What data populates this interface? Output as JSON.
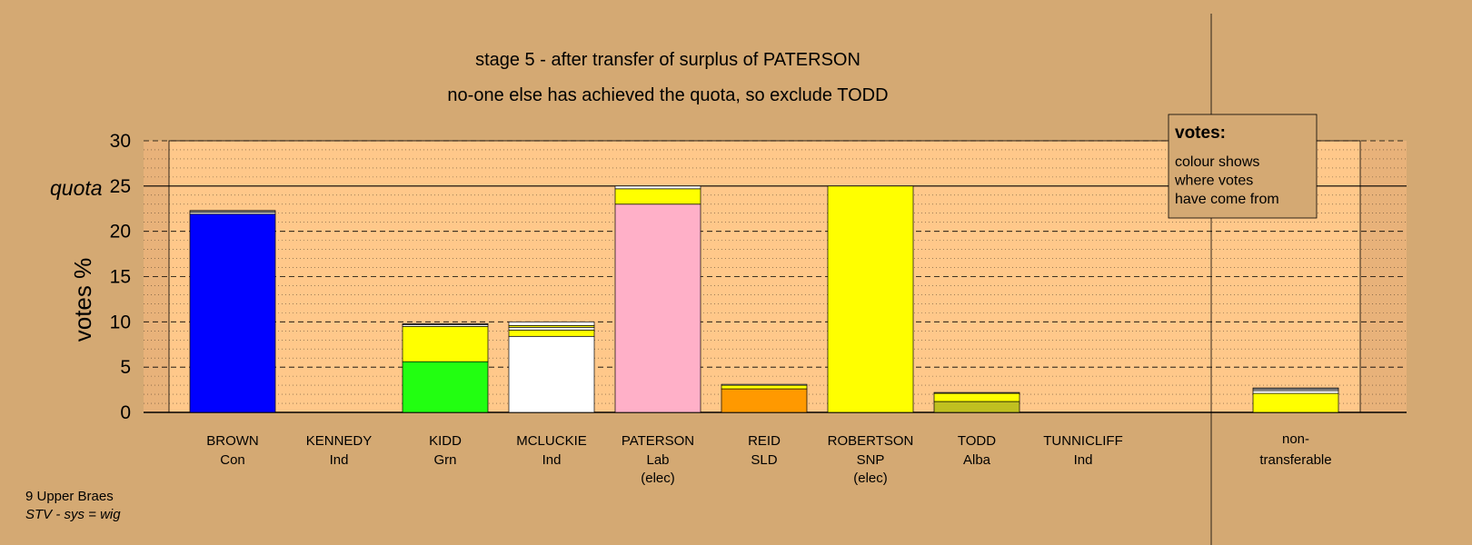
{
  "chart_data": {
    "type": "bar",
    "stacked": true,
    "title": "stage 5 - after transfer of surplus of PATERSON",
    "subtitle": "no-one else has achieved the quota, so exclude TODD",
    "ylabel": "votes %",
    "ylim": [
      0,
      30
    ],
    "yticks": [
      "0",
      "5",
      "10",
      "15",
      "20",
      "25",
      "30"
    ],
    "quota": 25,
    "quota_label": "quota",
    "grid": true,
    "legend_box": {
      "title": "votes:",
      "lines": [
        "colour shows",
        "where votes",
        "have come from"
      ],
      "placement": "top-right"
    },
    "candidates": [
      {
        "name": "BROWN",
        "party": "Con",
        "note": "",
        "segments": [
          {
            "color": "#0000ff",
            "value": 21.9
          },
          {
            "color": "#ffffff",
            "value": 0.2
          },
          {
            "color": "#808080",
            "value": 0.2
          }
        ]
      },
      {
        "name": "KENNEDY",
        "party": "Ind",
        "note": "",
        "segments": []
      },
      {
        "name": "KIDD",
        "party": "Grn",
        "note": "",
        "segments": [
          {
            "color": "#22ff11",
            "value": 5.6
          },
          {
            "color": "#ffff00",
            "value": 3.9
          },
          {
            "color": "#ffffff",
            "value": 0.2
          },
          {
            "color": "#808080",
            "value": 0.1
          }
        ]
      },
      {
        "name": "MCLUCKIE",
        "party": "Ind",
        "note": "",
        "segments": [
          {
            "color": "#ffffff",
            "value": 8.4
          },
          {
            "color": "#ffff00",
            "value": 0.7
          },
          {
            "color": "#ffffff",
            "value": 0.3
          },
          {
            "color": "#ffff00",
            "value": 0.2
          },
          {
            "color": "#ffffff",
            "value": 0.4
          }
        ]
      },
      {
        "name": "PATERSON",
        "party": "Lab",
        "note": "(elec)",
        "segments": [
          {
            "color": "#ffb0c8",
            "value": 23.0
          },
          {
            "color": "#ffff00",
            "value": 1.7
          },
          {
            "color": "#ffffff",
            "value": 0.3
          }
        ]
      },
      {
        "name": "REID",
        "party": "SLD",
        "note": "",
        "segments": [
          {
            "color": "#ff9900",
            "value": 2.6
          },
          {
            "color": "#ffff00",
            "value": 0.4
          },
          {
            "color": "#ffffff",
            "value": 0.1
          }
        ]
      },
      {
        "name": "ROBERTSON",
        "party": "SNP",
        "note": "(elec)",
        "segments": [
          {
            "color": "#ffff00",
            "value": 25.0
          }
        ]
      },
      {
        "name": "TODD",
        "party": "Alba",
        "note": "",
        "segments": [
          {
            "color": "#c0c020",
            "value": 1.2
          },
          {
            "color": "#ffff00",
            "value": 0.9
          },
          {
            "color": "#808080",
            "value": 0.1
          }
        ]
      },
      {
        "name": "TUNNICLIFF",
        "party": "Ind",
        "note": "",
        "segments": []
      }
    ],
    "non_transferable": {
      "label_line1": "non-",
      "label_line2": "transferable",
      "segments": [
        {
          "color": "#ffff00",
          "value": 2.1
        },
        {
          "color": "#ffffff",
          "value": 0.3
        },
        {
          "color": "#c0c0c0",
          "value": 0.2
        },
        {
          "color": "#ffffff",
          "value": 0.1
        }
      ]
    }
  },
  "footer": {
    "line1": "9 Upper Braes",
    "line2": "STV - sys = wig"
  },
  "colors": {
    "background": "#d4a973",
    "plot_area": "#ffc88a",
    "plot_margin": "#e8b27a"
  }
}
